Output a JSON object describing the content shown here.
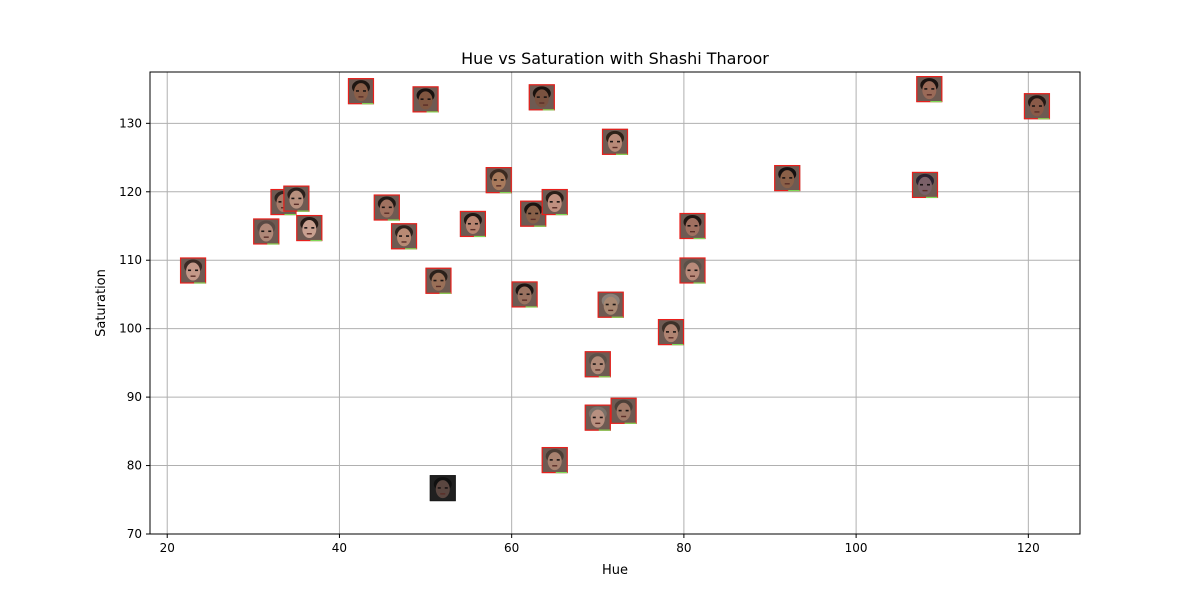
{
  "chart_data": {
    "type": "scatter",
    "title": "Hue vs Saturation with Shashi Tharoor",
    "xlabel": "Hue",
    "ylabel": "Saturation",
    "xlim": [
      18,
      126
    ],
    "ylim": [
      70,
      137.5
    ],
    "xticks": [
      20,
      40,
      60,
      80,
      100,
      120
    ],
    "yticks": [
      70,
      80,
      90,
      100,
      110,
      120,
      130
    ],
    "grid": true,
    "marker": "face-thumbnail",
    "marker_border_color": "#e8201c",
    "highlight_border_color": "#7ed957",
    "points": [
      {
        "x": 23,
        "y": 108.5,
        "tone": "#c49888",
        "hair": "#3a2a24"
      },
      {
        "x": 31.5,
        "y": 114.2,
        "tone": "#b08878",
        "hair": "#5a4a44"
      },
      {
        "x": 33.5,
        "y": 118.5,
        "tone": "#a87a68",
        "hair": "#2e241f"
      },
      {
        "x": 35,
        "y": 119,
        "tone": "#b8907e",
        "hair": "#2a201c"
      },
      {
        "x": 36.5,
        "y": 114.7,
        "tone": "#c8a090",
        "hair": "#241a16"
      },
      {
        "x": 42.5,
        "y": 134.7,
        "tone": "#8a5e48",
        "hair": "#1e1612"
      },
      {
        "x": 45.5,
        "y": 117.7,
        "tone": "#a07260",
        "hair": "#201814"
      },
      {
        "x": 47.5,
        "y": 113.5,
        "tone": "#b88a74",
        "hair": "#2c221c"
      },
      {
        "x": 50,
        "y": 133.5,
        "tone": "#805640",
        "hair": "#181210"
      },
      {
        "x": 51.5,
        "y": 107,
        "tone": "#9a7058",
        "hair": "#2a201a"
      },
      {
        "x": 52,
        "y": 76.7,
        "tone": "#5a4640",
        "hair": "#101010",
        "highlight": true
      },
      {
        "x": 55.5,
        "y": 115.3,
        "tone": "#b88470",
        "hair": "#1e1612"
      },
      {
        "x": 58.5,
        "y": 121.7,
        "tone": "#a87a5c",
        "hair": "#3a2a20"
      },
      {
        "x": 61.5,
        "y": 105,
        "tone": "#9a7260",
        "hair": "#1c1412"
      },
      {
        "x": 62.5,
        "y": 116.8,
        "tone": "#886048",
        "hair": "#1a1410"
      },
      {
        "x": 63.5,
        "y": 133.8,
        "tone": "#7a5240",
        "hair": "#1a120e"
      },
      {
        "x": 65,
        "y": 118.5,
        "tone": "#c09080",
        "hair": "#2a1e18"
      },
      {
        "x": 65,
        "y": 80.8,
        "tone": "#a88270",
        "hair": "#4a3c34"
      },
      {
        "x": 70,
        "y": 94.8,
        "tone": "#b08a78",
        "hair": "#5c5048"
      },
      {
        "x": 70,
        "y": 87,
        "tone": "#b89080",
        "hair": "#7a7068"
      },
      {
        "x": 71.5,
        "y": 103.5,
        "tone": "#a88872",
        "hair": "#8a8078"
      },
      {
        "x": 72,
        "y": 127.3,
        "tone": "#b88a78",
        "hair": "#2e2218"
      },
      {
        "x": 73,
        "y": 88,
        "tone": "#a07a68",
        "hair": "#4c4038"
      },
      {
        "x": 78.5,
        "y": 99.5,
        "tone": "#b08472",
        "hair": "#3c3028"
      },
      {
        "x": 81,
        "y": 115,
        "tone": "#a07060",
        "hair": "#1e1612"
      },
      {
        "x": 81,
        "y": 108.5,
        "tone": "#b88a7a",
        "hair": "#5a5048"
      },
      {
        "x": 92,
        "y": 122,
        "tone": "#8a6048",
        "hair": "#141010"
      },
      {
        "x": 108,
        "y": 121,
        "tone": "#7a6068",
        "hair": "#2a2230"
      },
      {
        "x": 108.5,
        "y": 135,
        "tone": "#9a6a58",
        "hair": "#1a1210"
      },
      {
        "x": 121,
        "y": 132.5,
        "tone": "#8a5a48",
        "hair": "#241814"
      }
    ]
  }
}
